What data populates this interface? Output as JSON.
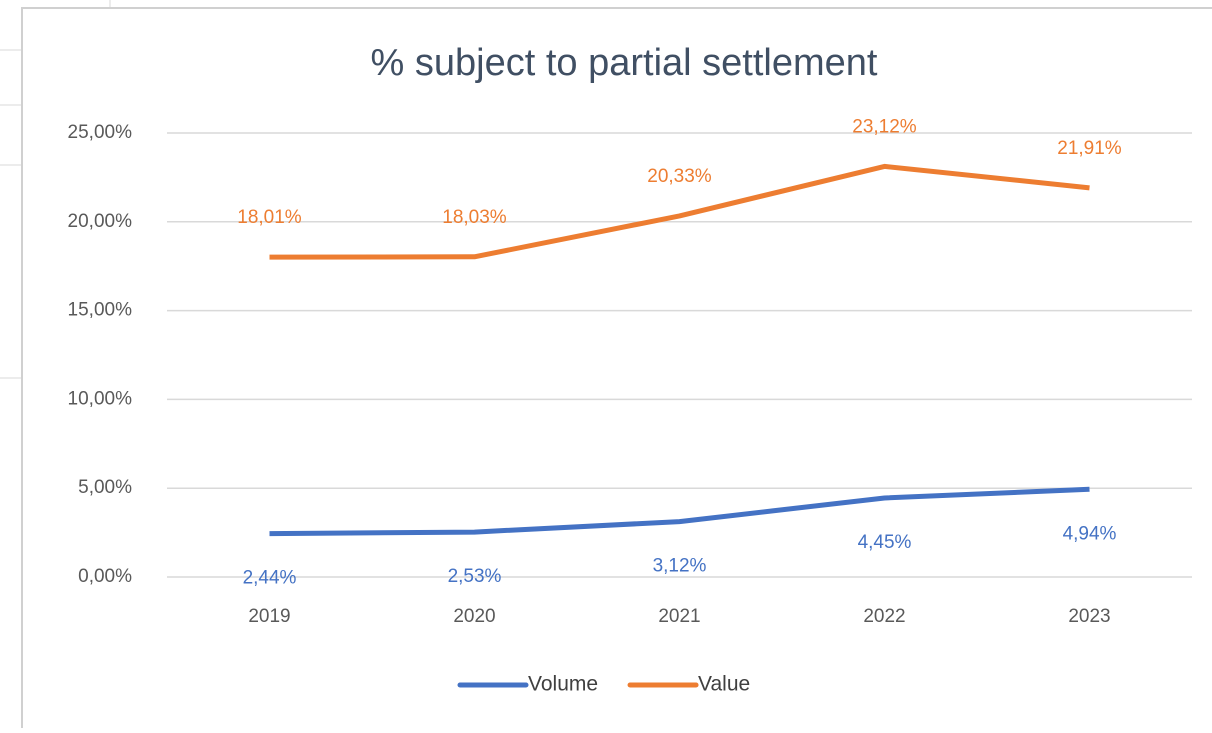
{
  "chart_data": {
    "type": "line",
    "title": "% subject to partial settlement",
    "categories": [
      "2019",
      "2020",
      "2021",
      "2022",
      "2023"
    ],
    "series": [
      {
        "name": "Volume",
        "color": "#4472c4",
        "values": [
          2.44,
          2.53,
          3.12,
          4.45,
          4.94
        ],
        "value_labels": [
          "2,44%",
          "2,53%",
          "3,12%",
          "4,45%",
          "4,94%"
        ]
      },
      {
        "name": "Value",
        "color": "#ed7d31",
        "values": [
          18.01,
          18.03,
          20.33,
          23.12,
          21.91
        ],
        "value_labels": [
          "18,01%",
          "18,03%",
          "20,33%",
          "23,12%",
          "21,91%"
        ]
      }
    ],
    "ylim": [
      0,
      25
    ],
    "yticks": [
      {
        "value": 0,
        "label": "0,00%"
      },
      {
        "value": 5,
        "label": "5,00%"
      },
      {
        "value": 10,
        "label": "10,00%"
      },
      {
        "value": 15,
        "label": "15,00%"
      },
      {
        "value": 20,
        "label": "20,00%"
      },
      {
        "value": 25,
        "label": "25,00%"
      }
    ],
    "grid": true,
    "legend": "bottom"
  }
}
